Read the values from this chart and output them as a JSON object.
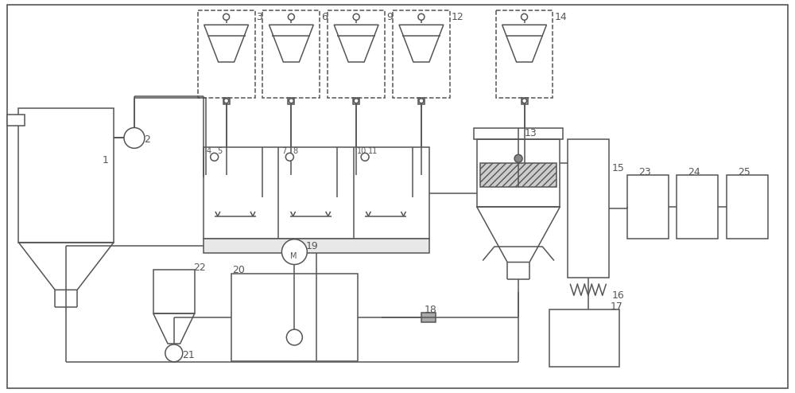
{
  "bg_color": "#ffffff",
  "line_color": "#555555",
  "lw": 1.1,
  "fig_width": 10.0,
  "fig_height": 4.94
}
